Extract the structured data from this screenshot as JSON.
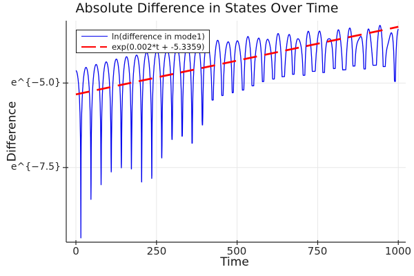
{
  "chart_data": {
    "type": "line",
    "title": "Absolute Difference in States Over Time",
    "xlabel": "Time",
    "ylabel": "Difference",
    "xlim": [
      -30,
      1023
    ],
    "ylim_ln": [
      -9.71,
      -3.155
    ],
    "x_ticks": [
      0,
      250,
      500,
      750,
      1000
    ],
    "x_tick_labels": [
      "0",
      "250",
      "500",
      "750",
      "1000"
    ],
    "y_ticks": [
      {
        "ln": -5.0,
        "label": "e^{−5.0}"
      },
      {
        "ln": -7.5,
        "label": "e^{−7.5}"
      }
    ],
    "grid": true,
    "legend_position": "top-left",
    "colors": {
      "blue_series": "#0000ee",
      "red_fit": "#ff0000",
      "grid": "#e7e7e7",
      "axis": "#262626",
      "text": "#141414",
      "background": "#ffffff"
    },
    "series": [
      {
        "name": "ln(difference in mode1)",
        "style": "solid",
        "color": "#0000ee",
        "stroke_width": 1.3,
        "model": {
          "description": "ln|oscillating difference|: rounded humps (half-period 31.4 t-units) under a rising envelope, with sharp downward spikes at zero crossings whose depth shrinks over time",
          "t_range": [
            0,
            1000
          ],
          "t_step": 0.5,
          "envelope_top_base_ln": -3.33,
          "envelope_top_amp_ln": -1.3,
          "envelope_top_tau": 420,
          "omega": 0.1,
          "dip_t0": 15.3,
          "dip_spacing": 31.4,
          "secondary_amp": 0.22,
          "secondary_pow": 1.7,
          "secondary_omega": 0.237,
          "secondary_phase": 0.9,
          "dip_depths_ln": [
            5.0,
            3.95,
            3.6,
            3.3,
            3.25,
            3.35,
            3.8,
            3.75,
            3.2,
            2.7,
            2.65,
            2.9,
            2.4,
            1.7,
            1.6,
            1.55,
            1.5,
            1.4,
            1.3,
            1.25,
            1.2,
            1.15,
            1.2,
            1.1,
            1.15,
            1.05,
            1.1,
            1.0,
            1.1,
            1.0,
            1.05,
            1.5
          ]
        }
      },
      {
        "name": "exp(0.002*t + -5.3359)",
        "style": "dashed",
        "color": "#ff0000",
        "stroke_width": 2.7,
        "dash_pattern": "20 11",
        "fit": {
          "slope": 0.002,
          "intercept": -5.3359,
          "t_range": [
            0,
            1000
          ]
        }
      }
    ]
  }
}
